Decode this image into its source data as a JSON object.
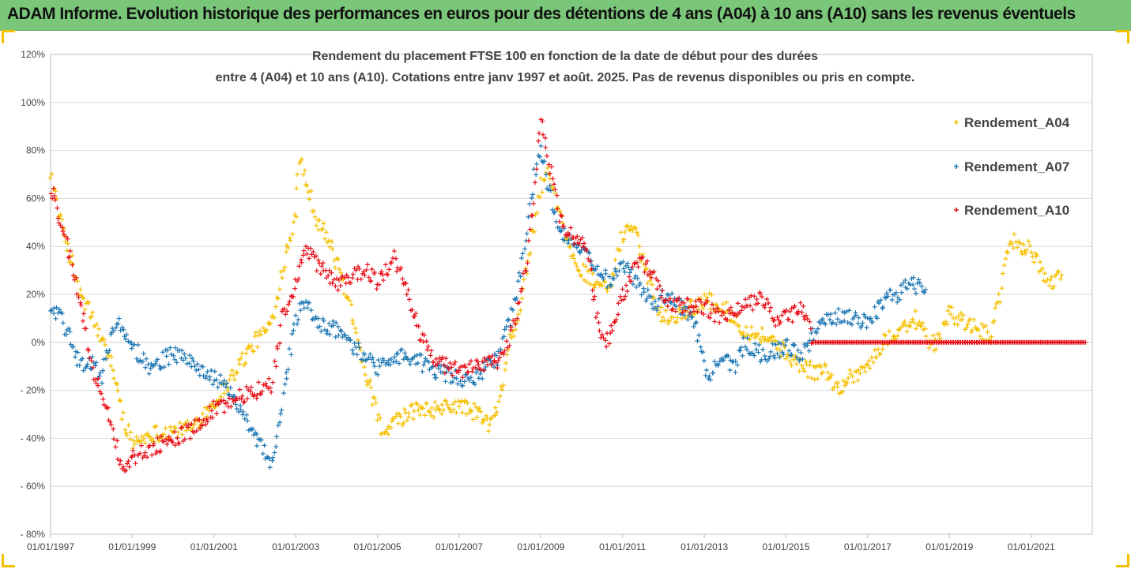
{
  "banner": {
    "title": "ADAM Informe. Evolution historique des performances en euros pour des détentions de 4 ans (A04) à 10 ans (A10) sans les revenus éventuels",
    "color": "#7bc77a"
  },
  "chart_data": {
    "type": "scatter",
    "title_line1": "Rendement du placement FTSE 100 en fonction de la date de début pour des durées",
    "title_line2": "entre 4 (A04) et 10 ans (A10). Cotations entre janv 1997 et août. 2025. Pas de revenus disponibles ou pris en compte.",
    "xlabel": "",
    "ylabel": "",
    "x_axis_type": "date",
    "xlim": [
      "1997-01-01",
      "2022-07-01"
    ],
    "x_tick_labels": [
      "01/01/1997",
      "01/01/1999",
      "01/01/2001",
      "01/01/2003",
      "01/01/2005",
      "01/01/2007",
      "01/01/2009",
      "01/01/2011",
      "01/01/2013",
      "01/01/2015",
      "01/01/2017",
      "01/01/2019",
      "01/01/2021"
    ],
    "ylim": [
      -80,
      120
    ],
    "y_unit": "%",
    "y_ticks": [
      120,
      100,
      80,
      60,
      40,
      20,
      0,
      -20,
      -40,
      -60,
      -80
    ],
    "y_tick_labels": [
      "120%",
      "100%",
      "80%",
      "60%",
      "40%",
      "20%",
      "0%",
      "- 20%",
      "- 40%",
      "- 60%",
      "- 80%"
    ],
    "grid": "horizontal",
    "legend_position": "right",
    "marker": "+",
    "series": [
      {
        "name": "Rendement_A04",
        "color": "#f5c000",
        "points": [
          [
            "1997-01-01",
            72
          ],
          [
            "1997-04-01",
            50
          ],
          [
            "1997-07-01",
            35
          ],
          [
            "1997-10-01",
            18
          ],
          [
            "1998-01-01",
            12
          ],
          [
            "1998-04-01",
            0
          ],
          [
            "1998-07-01",
            -8
          ],
          [
            "1998-10-01",
            -30
          ],
          [
            "1999-01-01",
            -42
          ],
          [
            "1999-04-01",
            -40
          ],
          [
            "1999-07-01",
            -38
          ],
          [
            "2000-01-01",
            -37
          ],
          [
            "2000-06-01",
            -36
          ],
          [
            "2001-01-01",
            -25
          ],
          [
            "2001-06-01",
            -15
          ],
          [
            "2001-09-01",
            -8
          ],
          [
            "2002-01-01",
            0
          ],
          [
            "2002-06-01",
            8
          ],
          [
            "2002-09-01",
            30
          ],
          [
            "2003-01-01",
            55
          ],
          [
            "2003-02-01",
            78
          ],
          [
            "2003-04-01",
            68
          ],
          [
            "2003-07-01",
            52
          ],
          [
            "2003-10-01",
            45
          ],
          [
            "2004-03-01",
            25
          ],
          [
            "2004-06-01",
            10
          ],
          [
            "2004-09-01",
            -10
          ],
          [
            "2005-01-01",
            -30
          ],
          [
            "2005-03-01",
            -40
          ],
          [
            "2005-06-01",
            -33
          ],
          [
            "2006-01-01",
            -28
          ],
          [
            "2006-07-01",
            -28
          ],
          [
            "2007-01-01",
            -26
          ],
          [
            "2007-07-01",
            -30
          ],
          [
            "2007-10-01",
            -35
          ],
          [
            "2008-01-01",
            -25
          ],
          [
            "2008-04-01",
            0
          ],
          [
            "2008-07-01",
            15
          ],
          [
            "2008-10-01",
            40
          ],
          [
            "2009-01-01",
            65
          ],
          [
            "2009-03-01",
            70
          ],
          [
            "2009-06-01",
            55
          ],
          [
            "2009-09-01",
            40
          ],
          [
            "2010-01-01",
            30
          ],
          [
            "2010-06-01",
            25
          ],
          [
            "2010-09-01",
            20
          ],
          [
            "2011-01-01",
            45
          ],
          [
            "2011-04-01",
            50
          ],
          [
            "2011-07-01",
            35
          ],
          [
            "2011-10-01",
            20
          ],
          [
            "2012-01-01",
            10
          ],
          [
            "2012-06-01",
            12
          ],
          [
            "2012-10-01",
            15
          ],
          [
            "2013-01-01",
            18
          ],
          [
            "2013-06-01",
            15
          ],
          [
            "2013-10-01",
            10
          ],
          [
            "2014-01-01",
            5
          ],
          [
            "2014-06-01",
            3
          ],
          [
            "2014-10-01",
            0
          ],
          [
            "2015-01-01",
            -5
          ],
          [
            "2015-06-01",
            -10
          ],
          [
            "2015-09-01",
            -12
          ],
          [
            "2016-01-01",
            -12
          ],
          [
            "2016-04-01",
            -20
          ],
          [
            "2016-07-01",
            -15
          ],
          [
            "2017-01-01",
            -10
          ],
          [
            "2017-06-01",
            0
          ],
          [
            "2017-10-01",
            5
          ],
          [
            "2018-03-01",
            10
          ],
          [
            "2018-07-01",
            0
          ],
          [
            "2018-10-01",
            0
          ],
          [
            "2019-01-01",
            12
          ],
          [
            "2019-06-01",
            8
          ],
          [
            "2019-10-01",
            5
          ],
          [
            "2020-01-01",
            2
          ],
          [
            "2020-04-01",
            20
          ],
          [
            "2020-07-01",
            43
          ],
          [
            "2021-01-01",
            38
          ],
          [
            "2021-04-01",
            30
          ],
          [
            "2021-07-01",
            25
          ],
          [
            "2021-10-01",
            28
          ]
        ]
      },
      {
        "name": "Rendement_A07",
        "color": "#1f78b4",
        "points": [
          [
            "1997-01-01",
            15
          ],
          [
            "1997-04-01",
            10
          ],
          [
            "1997-07-01",
            0
          ],
          [
            "1997-10-01",
            -10
          ],
          [
            "1998-01-01",
            -8
          ],
          [
            "1998-04-01",
            -15
          ],
          [
            "1998-07-01",
            5
          ],
          [
            "1998-10-01",
            8
          ],
          [
            "1999-01-01",
            -2
          ],
          [
            "1999-06-01",
            -10
          ],
          [
            "2000-01-01",
            -5
          ],
          [
            "2000-06-01",
            -8
          ],
          [
            "2001-01-01",
            -15
          ],
          [
            "2001-06-01",
            -20
          ],
          [
            "2001-09-01",
            -30
          ],
          [
            "2002-01-01",
            -40
          ],
          [
            "2002-06-01",
            -50
          ],
          [
            "2002-09-01",
            -25
          ],
          [
            "2003-01-01",
            10
          ],
          [
            "2003-04-01",
            18
          ],
          [
            "2003-07-01",
            8
          ],
          [
            "2004-01-01",
            5
          ],
          [
            "2004-06-01",
            -2
          ],
          [
            "2005-01-01",
            -10
          ],
          [
            "2005-06-01",
            -5
          ],
          [
            "2006-01-01",
            -8
          ],
          [
            "2006-06-01",
            -12
          ],
          [
            "2007-01-01",
            -15
          ],
          [
            "2007-06-01",
            -15
          ],
          [
            "2008-01-01",
            -5
          ],
          [
            "2008-06-01",
            20
          ],
          [
            "2008-09-01",
            45
          ],
          [
            "2008-11-01",
            70
          ],
          [
            "2009-01-01",
            80
          ],
          [
            "2009-04-01",
            60
          ],
          [
            "2009-07-01",
            45
          ],
          [
            "2010-01-01",
            38
          ],
          [
            "2010-06-01",
            30
          ],
          [
            "2010-09-01",
            25
          ],
          [
            "2011-01-01",
            32
          ],
          [
            "2011-06-01",
            25
          ],
          [
            "2011-10-01",
            15
          ],
          [
            "2012-01-01",
            20
          ],
          [
            "2012-06-01",
            15
          ],
          [
            "2012-10-01",
            10
          ],
          [
            "2013-01-01",
            -10
          ],
          [
            "2013-03-01",
            -15
          ],
          [
            "2013-06-01",
            -5
          ],
          [
            "2013-10-01",
            -10
          ],
          [
            "2014-01-01",
            0
          ],
          [
            "2014-06-01",
            -5
          ],
          [
            "2015-01-01",
            -2
          ],
          [
            "2015-06-01",
            -5
          ],
          [
            "2015-10-01",
            5
          ],
          [
            "2016-01-01",
            10
          ],
          [
            "2016-06-01",
            12
          ],
          [
            "2017-01-01",
            8
          ],
          [
            "2017-06-01",
            18
          ],
          [
            "2017-10-01",
            20
          ],
          [
            "2018-01-01",
            25
          ],
          [
            "2018-06-01",
            22
          ]
        ]
      },
      {
        "name": "Rendement_A10",
        "color": "#e8101a",
        "points": [
          [
            "1997-01-01",
            65
          ],
          [
            "1997-04-01",
            50
          ],
          [
            "1997-07-01",
            35
          ],
          [
            "1997-10-01",
            15
          ],
          [
            "1998-01-01",
            -10
          ],
          [
            "1998-04-01",
            -20
          ],
          [
            "1998-07-01",
            -35
          ],
          [
            "1998-10-01",
            -52
          ],
          [
            "1999-01-01",
            -48
          ],
          [
            "1999-06-01",
            -45
          ],
          [
            "2000-01-01",
            -40
          ],
          [
            "2000-06-01",
            -37
          ],
          [
            "2001-01-01",
            -28
          ],
          [
            "2001-06-01",
            -25
          ],
          [
            "2001-09-01",
            -22
          ],
          [
            "2002-01-01",
            -20
          ],
          [
            "2002-06-01",
            -18
          ],
          [
            "2002-09-01",
            10
          ],
          [
            "2003-01-01",
            25
          ],
          [
            "2003-04-01",
            38
          ],
          [
            "2003-09-01",
            30
          ],
          [
            "2004-01-01",
            25
          ],
          [
            "2004-06-01",
            28
          ],
          [
            "2004-10-01",
            30
          ],
          [
            "2005-01-01",
            25
          ],
          [
            "2005-06-01",
            35
          ],
          [
            "2005-09-01",
            25
          ],
          [
            "2006-01-01",
            5
          ],
          [
            "2006-06-01",
            -8
          ],
          [
            "2007-01-01",
            -12
          ],
          [
            "2007-06-01",
            -10
          ],
          [
            "2008-01-01",
            -8
          ],
          [
            "2008-06-01",
            10
          ],
          [
            "2008-09-01",
            35
          ],
          [
            "2008-11-01",
            60
          ],
          [
            "2009-01-01",
            95
          ],
          [
            "2009-03-01",
            80
          ],
          [
            "2009-06-01",
            55
          ],
          [
            "2009-09-01",
            45
          ],
          [
            "2010-01-01",
            42
          ],
          [
            "2010-03-01",
            35
          ],
          [
            "2010-06-01",
            5
          ],
          [
            "2010-09-01",
            0
          ],
          [
            "2011-01-01",
            20
          ],
          [
            "2011-06-01",
            35
          ],
          [
            "2011-10-01",
            28
          ],
          [
            "2012-01-01",
            18
          ],
          [
            "2012-06-01",
            15
          ],
          [
            "2013-01-01",
            15
          ],
          [
            "2013-06-01",
            10
          ],
          [
            "2013-10-01",
            12
          ],
          [
            "2014-01-01",
            15
          ],
          [
            "2014-06-01",
            18
          ],
          [
            "2014-10-01",
            10
          ],
          [
            "2015-01-01",
            10
          ],
          [
            "2015-06-01",
            15
          ],
          [
            "2015-09-01",
            0
          ],
          [
            "2015-12-01",
            0
          ],
          [
            "2022-05-01",
            0
          ]
        ]
      }
    ]
  }
}
